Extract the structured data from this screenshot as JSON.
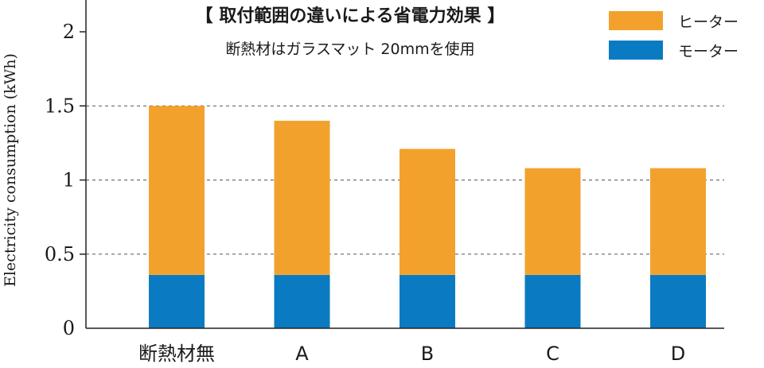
{
  "chart_data": {
    "type": "bar",
    "stacked": true,
    "title": "【 取付範囲の違いによる省電力効果 】",
    "subtitle": "断熱材はガラスマット 20mmを使用",
    "xlabel": "",
    "ylabel": "Electricity consumption (kWh)",
    "ylim": [
      0,
      2
    ],
    "yticks": [
      0,
      0.5,
      1,
      1.5,
      2
    ],
    "ytick_labels": [
      "0",
      "0.5",
      "1",
      "1.5",
      "2"
    ],
    "grid": "horizontal dashed at 0.5, 1, 1.5",
    "legend_position": "top-right",
    "categories": [
      "断熱材無",
      "A",
      "B",
      "C",
      "D"
    ],
    "series": [
      {
        "name": "モーター",
        "color": "#0a7bc2",
        "values": [
          0.36,
          0.36,
          0.36,
          0.36,
          0.36
        ]
      },
      {
        "name": "ヒーター",
        "color": "#f2a22c",
        "values": [
          1.14,
          1.04,
          0.85,
          0.72,
          0.72
        ]
      }
    ]
  }
}
